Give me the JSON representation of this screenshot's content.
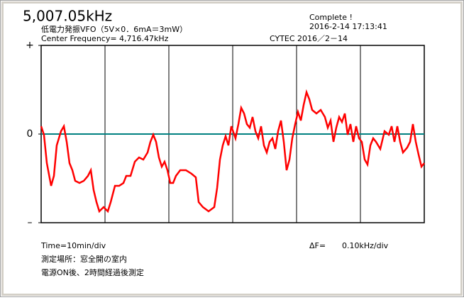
{
  "chart_data": {
    "type": "line",
    "title": "5,007.05kHz",
    "subtitle": "低電力発振VFO（5V×0．6mA＝3mW）",
    "center_frequency": "Center Frequency=  4,716.47kHz",
    "status": "Complete !",
    "timestamp": "2016-2-14  17:13:41",
    "credit": "CYTEC  2016／2－14",
    "x_label": "Time=10min/div",
    "y_label": "ΔF=",
    "y_scale": "0.10kHz/div",
    "notes": [
      "測定場所：窓全開の室内",
      "電源ON後、2時間経過後測定"
    ],
    "color": "#ff0000",
    "zero_line_color": "#008080",
    "xlim": [
      0,
      60
    ],
    "xgrid": [
      10,
      20,
      30,
      40,
      50
    ],
    "ylim": [
      -0.25,
      0.25
    ],
    "yticks": [
      {
        "value": 0.25,
        "label": "+"
      },
      0,
      {
        "value": -0.25,
        "label": "–"
      }
    ],
    "x": [
      0,
      0.44,
      0.89,
      1.56,
      2,
      2.44,
      3.11,
      3.56,
      4,
      4.44,
      4.89,
      5.33,
      6,
      6.67,
      7.33,
      7.78,
      8.22,
      8.67,
      9.11,
      9.78,
      10.44,
      10.89,
      11.56,
      12.22,
      12.89,
      13.33,
      14,
      14.67,
      15.33,
      16,
      16.67,
      17.11,
      17.56,
      18,
      18.44,
      18.89,
      19.33,
      19.78,
      20.22,
      20.67,
      21.11,
      21.78,
      22.67,
      23.56,
      24.22,
      24.67,
      25.33,
      26.22,
      27.11,
      27.56,
      28,
      28.44,
      28.89,
      29.33,
      29.78,
      30.44,
      30.89,
      31.33,
      31.78,
      32.22,
      32.67,
      33.11,
      33.56,
      34,
      34.44,
      34.89,
      35.33,
      35.78,
      36.22,
      36.67,
      37.11,
      37.56,
      38,
      38.44,
      38.89,
      39.33,
      39.78,
      40.22,
      40.67,
      41.11,
      41.56,
      42,
      42.44,
      43.11,
      43.78,
      44.44,
      44.89,
      45.33,
      45.78,
      46.22,
      46.67,
      47.11,
      47.56,
      48,
      48.44,
      48.89,
      49.33,
      49.78,
      50.22,
      50.67,
      51.11,
      51.56,
      52,
      52.44,
      53.11,
      53.78,
      54.44,
      54.89,
      55.33,
      55.78,
      56.22,
      56.67,
      57.33,
      57.78,
      58.22,
      58.67,
      59.11,
      59.56,
      60
    ],
    "values": [
      0.022,
      -0.002,
      -0.082,
      -0.146,
      -0.118,
      -0.032,
      0.008,
      0.022,
      -0.022,
      -0.082,
      -0.102,
      -0.132,
      -0.138,
      -0.132,
      -0.118,
      -0.102,
      -0.158,
      -0.192,
      -0.218,
      -0.206,
      -0.218,
      -0.192,
      -0.146,
      -0.146,
      -0.138,
      -0.118,
      -0.118,
      -0.078,
      -0.066,
      -0.072,
      -0.052,
      -0.022,
      -0.002,
      -0.022,
      -0.066,
      -0.092,
      -0.078,
      -0.102,
      -0.138,
      -0.138,
      -0.118,
      -0.102,
      -0.102,
      -0.112,
      -0.122,
      -0.192,
      -0.206,
      -0.218,
      -0.206,
      -0.152,
      -0.072,
      -0.032,
      -0.006,
      -0.032,
      0.022,
      -0.012,
      0.028,
      0.074,
      0.058,
      0.028,
      0.018,
      0.048,
      0.008,
      -0.012,
      0.022,
      -0.032,
      -0.052,
      -0.022,
      -0.012,
      -0.042,
      0.008,
      0.038,
      -0.022,
      -0.102,
      -0.072,
      -0.012,
      0.028,
      0.062,
      0.038,
      0.082,
      0.118,
      0.098,
      0.068,
      0.058,
      0.068,
      0.048,
      0.018,
      0.038,
      -0.022,
      0.018,
      0.048,
      0.034,
      0.058,
      -0.002,
      0.028,
      -0.022,
      0.022,
      -0.012,
      -0.022,
      -0.072,
      -0.086,
      -0.032,
      -0.012,
      -0.022,
      -0.042,
      0.008,
      -0.002,
      0.022,
      -0.022,
      0.022,
      -0.022,
      -0.052,
      -0.038,
      -0.022,
      0.028,
      -0.022,
      -0.058,
      -0.092,
      -0.082
    ]
  }
}
